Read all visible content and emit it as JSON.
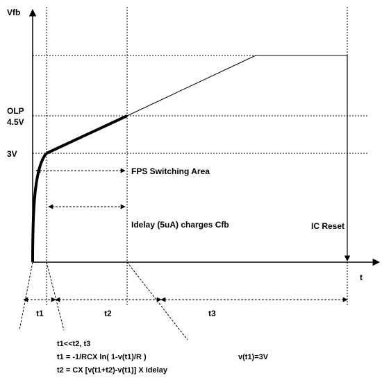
{
  "axes": {
    "y_label": "Vfb",
    "x_label": "t"
  },
  "levels": {
    "olp_line1": "OLP",
    "olp_line2": "4.5V",
    "v3": "3V"
  },
  "regions": {
    "fps_area": "FPS Switching Area",
    "idelay_charge": "Idelay (5uA) charges Cfb",
    "ic_reset": "IC Reset"
  },
  "intervals": {
    "t1": "t1",
    "t2": "t2",
    "t3": "t3"
  },
  "equations": {
    "line1": "t1<<t2, t3",
    "line2": "t1 = -1/RCX ln( 1-v(t1)/R )",
    "line3": "t2 = CX [v(t1+t2)-v(t1)] X Idelay",
    "condition": "v(t1)=3V"
  },
  "colors": {
    "ink": "#000000",
    "background": "#ffffff"
  }
}
